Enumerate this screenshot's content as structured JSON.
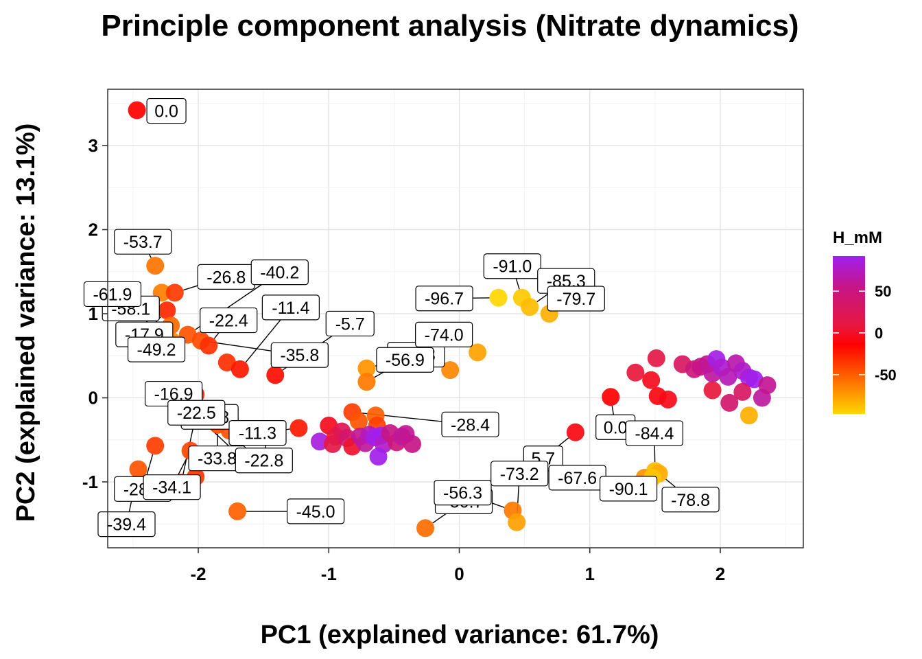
{
  "chart_data": {
    "type": "scatter",
    "title": "Principle component analysis (Nitrate dynamics)",
    "xlabel": "PC1 (explained variance: 61.7%)",
    "ylabel": "PC2 (explained variance: 13.1%)",
    "xlim": [
      -2.68,
      2.66
    ],
    "ylim": [
      -1.79,
      3.65
    ],
    "xticks": [
      "-2",
      "-1",
      "0",
      "1",
      "2"
    ],
    "xtick_values": [
      -2,
      -1,
      0,
      1,
      2
    ],
    "yticks": [
      "-1",
      "0",
      "1",
      "2",
      "3"
    ],
    "ytick_values": [
      -1,
      0,
      1,
      2,
      3
    ],
    "grid": true,
    "legend": {
      "title": "H_mM",
      "placement": "right",
      "type": "color-gradient",
      "range": [
        -97,
        92
      ],
      "ticks": [
        "50",
        "0",
        "-50"
      ],
      "tick_values": [
        50,
        0,
        -50
      ],
      "colors": [
        "#a020f0",
        "#ff0000",
        "#ffd700"
      ]
    },
    "points": [
      {
        "x": -2.47,
        "y": 3.42,
        "h": 0.0,
        "label": "0.0"
      },
      {
        "x": -2.33,
        "y": 1.57,
        "h": -53.7,
        "label": "-53.7"
      },
      {
        "x": -2.28,
        "y": 1.25,
        "h": -58.1,
        "label": "-58.1"
      },
      {
        "x": -2.18,
        "y": 1.25,
        "h": -26.8,
        "label": "-26.8"
      },
      {
        "x": -2.24,
        "y": 1.04,
        "h": -17.9,
        "label": "-17.9"
      },
      {
        "x": -2.21,
        "y": 0.86,
        "h": -49.2,
        "label": "-49.2"
      },
      {
        "x": -2.08,
        "y": 0.75,
        "h": -40.2,
        "label": "-40.2"
      },
      {
        "x": -2.2,
        "y": 0.67,
        "h": -61.9,
        "label": "-61.9"
      },
      {
        "x": -1.98,
        "y": 0.68,
        "h": -35.8,
        "label": "-35.8"
      },
      {
        "x": -1.92,
        "y": 0.62,
        "h": -22.4,
        "label": "-22.4"
      },
      {
        "x": -1.78,
        "y": 0.42,
        "h": -22.0
      },
      {
        "x": -1.68,
        "y": 0.34,
        "h": -11.4,
        "label": "-11.4"
      },
      {
        "x": -2.02,
        "y": 0.04,
        "h": -17.1,
        "label": "-17.1"
      },
      {
        "x": -1.41,
        "y": 0.27,
        "h": -5.7,
        "label": "-5.7"
      },
      {
        "x": -2.33,
        "y": -0.57,
        "h": -28.1,
        "label": "-28.1"
      },
      {
        "x": -2.46,
        "y": -0.85,
        "h": -39.4,
        "label": "-39.4"
      },
      {
        "x": -2.06,
        "y": -0.63,
        "h": -34.1,
        "label": "-34.1"
      },
      {
        "x": -1.85,
        "y": -0.32,
        "h": -33.8,
        "label": "-33.8"
      },
      {
        "x": -1.76,
        "y": -0.39,
        "h": -39.8,
        "label": "-39.8"
      },
      {
        "x": -1.7,
        "y": -0.67,
        "h": -16.9,
        "label": "-16.9"
      },
      {
        "x": -2.02,
        "y": -0.94,
        "h": -25.0
      },
      {
        "x": -2.13,
        "y": -1.01,
        "h": -22.5,
        "label": "-22.5"
      },
      {
        "x": -1.7,
        "y": -1.35,
        "h": -45.0,
        "label": "-45.0"
      },
      {
        "x": -1.47,
        "y": -0.41,
        "h": -22.8,
        "label": "-22.8"
      },
      {
        "x": -1.23,
        "y": -0.36,
        "h": -11.3,
        "label": "-11.3"
      },
      {
        "x": -0.71,
        "y": 0.35,
        "h": -68.3,
        "label": "-68.3"
      },
      {
        "x": -0.71,
        "y": 0.19,
        "h": -56.9,
        "label": "-56.9"
      },
      {
        "x": -0.82,
        "y": -0.17,
        "h": -28.4,
        "label": "-28.4"
      },
      {
        "x": -0.77,
        "y": -0.28,
        "h": -40.0
      },
      {
        "x": -0.64,
        "y": -0.21,
        "h": -45.0
      },
      {
        "x": -0.63,
        "y": -0.33,
        "h": -30.0
      },
      {
        "x": -1.07,
        "y": -0.52,
        "h": 85.0
      },
      {
        "x": -1.0,
        "y": -0.33,
        "h": 10.0
      },
      {
        "x": -0.95,
        "y": -0.46,
        "h": 20.0
      },
      {
        "x": -0.9,
        "y": -0.4,
        "h": 30.0
      },
      {
        "x": -0.97,
        "y": -0.55,
        "h": 25.0
      },
      {
        "x": -0.86,
        "y": -0.48,
        "h": 40.0
      },
      {
        "x": -0.82,
        "y": -0.58,
        "h": 15.0
      },
      {
        "x": -0.76,
        "y": -0.46,
        "h": 55.0
      },
      {
        "x": -0.72,
        "y": -0.54,
        "h": 60.0
      },
      {
        "x": -0.69,
        "y": -0.44,
        "h": 70.0
      },
      {
        "x": -0.65,
        "y": -0.47,
        "h": 88.0
      },
      {
        "x": -0.6,
        "y": -0.45,
        "h": 92.0
      },
      {
        "x": -0.58,
        "y": -0.55,
        "h": 75.0
      },
      {
        "x": -0.53,
        "y": -0.42,
        "h": 50.0
      },
      {
        "x": -0.48,
        "y": -0.53,
        "h": 45.0
      },
      {
        "x": -0.44,
        "y": -0.46,
        "h": 60.0
      },
      {
        "x": -0.36,
        "y": -0.55,
        "h": 50.0
      },
      {
        "x": -0.41,
        "y": -0.43,
        "h": 55.0
      },
      {
        "x": -0.62,
        "y": -0.7,
        "h": 90.0
      },
      {
        "x": -0.07,
        "y": 0.33,
        "h": -62.6,
        "label": "-62.6"
      },
      {
        "x": 0.14,
        "y": 0.54,
        "h": -74.0,
        "label": "-74.0"
      },
      {
        "x": 0.3,
        "y": 1.19,
        "h": -96.7,
        "label": "-96.7"
      },
      {
        "x": 0.48,
        "y": 1.19,
        "h": -91.0,
        "label": "-91.0"
      },
      {
        "x": 0.54,
        "y": 1.08,
        "h": -85.3,
        "label": "-85.3"
      },
      {
        "x": 0.69,
        "y": 1.0,
        "h": -79.7,
        "label": "-79.7"
      },
      {
        "x": 0.89,
        "y": -0.41,
        "h": 5.7,
        "label": "5.7"
      },
      {
        "x": -0.26,
        "y": -1.55,
        "h": -50.7,
        "label": "-50.7"
      },
      {
        "x": 0.41,
        "y": -1.34,
        "h": -56.3,
        "label": "-56.3"
      },
      {
        "x": 0.44,
        "y": -1.48,
        "h": -73.2,
        "label": "-73.2"
      },
      {
        "x": 1.16,
        "y": 0.01,
        "h": 0.0,
        "label": "0.0"
      },
      {
        "x": 1.42,
        "y": -0.95,
        "h": -67.6,
        "label": "-67.6"
      },
      {
        "x": 1.5,
        "y": -0.87,
        "h": -84.4,
        "label": "-84.4"
      },
      {
        "x": 1.53,
        "y": -0.9,
        "h": -78.8,
        "label": "-78.8"
      },
      {
        "x": 1.48,
        "y": -0.95,
        "h": -90.1,
        "label": "-90.1"
      },
      {
        "x": 1.35,
        "y": 0.3,
        "h": 20.0
      },
      {
        "x": 1.47,
        "y": 0.21,
        "h": 10.0
      },
      {
        "x": 1.52,
        "y": 0.02,
        "h": 5.0
      },
      {
        "x": 1.6,
        "y": -0.02,
        "h": 8.0
      },
      {
        "x": 1.51,
        "y": 0.47,
        "h": 25.0
      },
      {
        "x": 1.71,
        "y": 0.4,
        "h": 35.0
      },
      {
        "x": 1.8,
        "y": 0.34,
        "h": 45.0
      },
      {
        "x": 1.85,
        "y": 0.37,
        "h": 50.0
      },
      {
        "x": 1.9,
        "y": 0.4,
        "h": 55.0
      },
      {
        "x": 1.94,
        "y": 0.29,
        "h": 60.0
      },
      {
        "x": 1.97,
        "y": 0.46,
        "h": 88.0
      },
      {
        "x": 2.01,
        "y": 0.36,
        "h": 80.0
      },
      {
        "x": 2.06,
        "y": 0.25,
        "h": 70.0
      },
      {
        "x": 2.12,
        "y": 0.41,
        "h": 65.0
      },
      {
        "x": 2.17,
        "y": 0.32,
        "h": 75.0
      },
      {
        "x": 2.22,
        "y": 0.24,
        "h": 85.0
      },
      {
        "x": 2.26,
        "y": 0.22,
        "h": 90.0
      },
      {
        "x": 2.32,
        "y": 0.0,
        "h": 60.0
      },
      {
        "x": 2.36,
        "y": 0.15,
        "h": 55.0
      },
      {
        "x": 1.94,
        "y": 0.09,
        "h": 20.0
      },
      {
        "x": 2.07,
        "y": -0.06,
        "h": 40.0
      },
      {
        "x": 2.17,
        "y": 0.07,
        "h": 35.0
      },
      {
        "x": 2.22,
        "y": -0.21,
        "h": -80.0
      }
    ]
  }
}
